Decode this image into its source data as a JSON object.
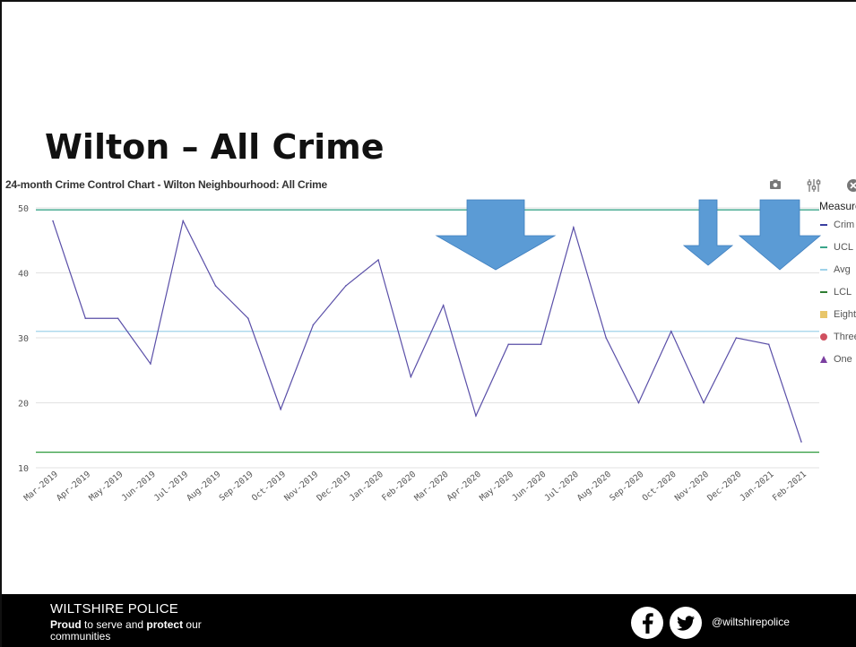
{
  "slide": {
    "title": "Wilton – All Crime"
  },
  "chart_data": {
    "type": "line",
    "title": "24-month Crime Control Chart - Wilton Neighbourhood: All Crime",
    "categories": [
      "Mar-2019",
      "Apr-2019",
      "May-2019",
      "Jun-2019",
      "Jul-2019",
      "Aug-2019",
      "Sep-2019",
      "Oct-2019",
      "Nov-2019",
      "Dec-2019",
      "Jan-2020",
      "Feb-2020",
      "Mar-2020",
      "Apr-2020",
      "May-2020",
      "Jun-2020",
      "Jul-2020",
      "Aug-2020",
      "Sep-2020",
      "Oct-2020",
      "Nov-2020",
      "Dec-2020",
      "Jan-2021",
      "Feb-2021"
    ],
    "series": [
      {
        "name": "Crime",
        "values": [
          48,
          33,
          33,
          26,
          48,
          38,
          33,
          19,
          32,
          38,
          42,
          24,
          35,
          18,
          29,
          29,
          47,
          30,
          20,
          31,
          20,
          30,
          29,
          14
        ],
        "color": "#5a4fa8"
      },
      {
        "name": "UCL",
        "values": [
          49.7,
          49.7,
          49.7,
          49.7,
          49.7,
          49.7,
          49.7,
          49.7,
          49.7,
          49.7,
          49.7,
          49.7,
          49.7,
          49.7,
          49.7,
          49.7,
          49.7,
          49.7,
          49.7,
          49.7,
          49.7,
          49.7,
          49.7,
          49.7
        ],
        "color": "#3aa58a"
      },
      {
        "name": "Avg",
        "values": [
          31,
          31,
          31,
          31,
          31,
          31,
          31,
          31,
          31,
          31,
          31,
          31,
          31,
          31,
          31,
          31,
          31,
          31,
          31,
          31,
          31,
          31,
          31,
          31
        ],
        "color": "#9fd3ea"
      },
      {
        "name": "LCL",
        "values": [
          12.4,
          12.4,
          12.4,
          12.4,
          12.4,
          12.4,
          12.4,
          12.4,
          12.4,
          12.4,
          12.4,
          12.4,
          12.4,
          12.4,
          12.4,
          12.4,
          12.4,
          12.4,
          12.4,
          12.4,
          12.4,
          12.4,
          12.4,
          12.4
        ],
        "color": "#2e9a3c"
      }
    ],
    "ylim": [
      9,
      51
    ],
    "yticks": [
      10,
      20,
      30,
      40,
      50
    ],
    "ytick_labels": [
      "10",
      "20",
      "30",
      "40",
      "50"
    ],
    "grid": true,
    "legend": {
      "title": "Measure",
      "placement": "right",
      "entries": [
        {
          "label": "Crim",
          "marker": "line",
          "color": "#3a3fa0"
        },
        {
          "label": "UCL",
          "marker": "line",
          "color": "#3aa58a"
        },
        {
          "label": "Avg",
          "marker": "line",
          "color": "#9fd3ea"
        },
        {
          "label": "LCL",
          "marker": "line",
          "color": "#2e7d32"
        },
        {
          "label": "Eight",
          "marker": "square",
          "color": "#e8c66a"
        },
        {
          "label": "Three",
          "marker": "circle",
          "color": "#d05060"
        },
        {
          "label": "One",
          "marker": "triangle",
          "color": "#7b3fa0"
        }
      ]
    },
    "annotations": [
      {
        "type": "down-arrow",
        "at_category": "Apr-2020",
        "color": "#5b9bd5"
      },
      {
        "type": "down-arrow",
        "at_category": "Nov-2020",
        "color": "#5b9bd5"
      },
      {
        "type": "down-arrow",
        "at_category": "Jan-2021",
        "color": "#5b9bd5"
      }
    ]
  },
  "toolbar": {
    "icons": [
      "camera-icon",
      "settings-sliders-icon",
      "close-icon"
    ]
  },
  "footer": {
    "org": "WILTSHIRE POLICE",
    "tagline_proud": "Proud",
    "tagline_mid": " to serve and ",
    "tagline_protect": "protect",
    "tagline_end": " our communities",
    "handle": "@wiltshirepolice",
    "icons": [
      "facebook-icon",
      "twitter-icon"
    ]
  },
  "colors": {
    "arrow": "#5b9bd5",
    "footer_bg": "#000000"
  }
}
